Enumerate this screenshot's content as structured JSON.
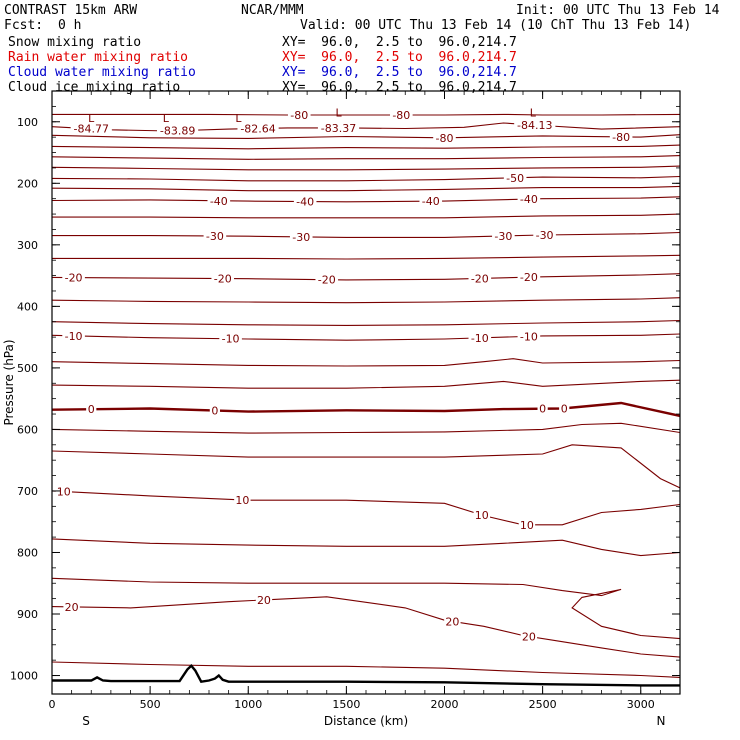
{
  "header": {
    "title": "CONTRAST 15km ARW",
    "center": "NCAR/MMM",
    "init": "Init: 00 UTC Thu 13 Feb 14",
    "fcst_label": "Fcst:",
    "fcst_value": "0 h",
    "valid": "Valid: 00 UTC Thu 13 Feb 14 (10 ChT Thu 13 Feb 14)"
  },
  "fields": [
    {
      "name": "Snow mixing ratio",
      "xy": "XY=  96.0,  2.5 to  96.0,214.7",
      "color": "#000000"
    },
    {
      "name": "Rain water mixing ratio",
      "xy": "XY=  96.0,  2.5 to  96.0,214.7",
      "color": "#e00000"
    },
    {
      "name": "Cloud water mixing ratio",
      "xy": "XY=  96.0,  2.5 to  96.0,214.7",
      "color": "#0000cc"
    },
    {
      "name": "Cloud ice mixing ratio",
      "xy": "XY=  96.0,  2.5 to  96.0,214.7",
      "color": "#000000"
    }
  ],
  "chart_data": {
    "type": "line",
    "xlabel": "Distance (km)",
    "ylabel": "Pressure (hPa)",
    "xlim": [
      0,
      3200
    ],
    "ylim": [
      1030,
      50
    ],
    "x_ticks": [
      0,
      500,
      1000,
      1500,
      2000,
      2500,
      3000
    ],
    "y_ticks": [
      100,
      200,
      300,
      400,
      500,
      600,
      700,
      800,
      900,
      1000
    ],
    "x_end_labels": {
      "left": "S",
      "right": "N"
    },
    "contour_color": "#7a0000",
    "terrain_color": "#000000",
    "contours": [
      {
        "level": "-80",
        "x": [
          0,
          400,
          800,
          1200,
          1600,
          2000,
          2300,
          2500,
          2800,
          3200
        ],
        "p": [
          88,
          88,
          88,
          89,
          89,
          89,
          88,
          89,
          89,
          88
        ],
        "labels": [
          {
            "x": 1260,
            "text": "-80"
          },
          {
            "x": 1780,
            "text": "-80"
          }
        ]
      },
      {
        "level": "",
        "x": [
          0,
          300,
          600,
          900,
          1200,
          1500,
          1800,
          2100,
          2300,
          2500,
          2800,
          3200
        ],
        "p": [
          108,
          113,
          115,
          112,
          110,
          110,
          111,
          109,
          102,
          106,
          112,
          108
        ],
        "labels": [
          {
            "x": 200,
            "text": "-84.77"
          },
          {
            "x": 640,
            "text": "-83.89"
          },
          {
            "x": 1050,
            "text": "-82.64"
          },
          {
            "x": 1460,
            "text": "-83.37"
          },
          {
            "x": 2460,
            "text": "-84.13"
          }
        ]
      },
      {
        "level": "-80",
        "x": [
          0,
          500,
          1000,
          1500,
          2000,
          2500,
          3000,
          3200
        ],
        "p": [
          122,
          126,
          127,
          124,
          126,
          123,
          125,
          121
        ],
        "labels": [
          {
            "x": 2000,
            "text": "-80"
          },
          {
            "x": 2900,
            "text": "-80"
          }
        ]
      },
      {
        "level": "",
        "x": [
          0,
          500,
          1000,
          1500,
          2000,
          2500,
          3000,
          3200
        ],
        "p": [
          140,
          142,
          144,
          142,
          143,
          141,
          140,
          138
        ],
        "labels": []
      },
      {
        "level": "",
        "x": [
          0,
          500,
          1000,
          1500,
          2000,
          2500,
          3000,
          3200
        ],
        "p": [
          157,
          159,
          161,
          160,
          160,
          158,
          157,
          155
        ],
        "labels": []
      },
      {
        "level": "",
        "x": [
          0,
          500,
          1000,
          1500,
          2000,
          2500,
          3000,
          3200
        ],
        "p": [
          174,
          176,
          178,
          178,
          177,
          175,
          174,
          172
        ],
        "labels": []
      },
      {
        "level": "-50",
        "x": [
          0,
          500,
          1000,
          1500,
          2000,
          2500,
          3000,
          3200
        ],
        "p": [
          192,
          193,
          196,
          196,
          194,
          190,
          191,
          189
        ],
        "labels": [
          {
            "x": 2360,
            "text": "-50"
          }
        ]
      },
      {
        "level": "",
        "x": [
          0,
          500,
          1000,
          1500,
          2000,
          2500,
          3000,
          3200
        ],
        "p": [
          208,
          209,
          212,
          212,
          210,
          207,
          207,
          205
        ],
        "labels": []
      },
      {
        "level": "-40",
        "x": [
          0,
          500,
          1000,
          1500,
          2000,
          2500,
          3000,
          3200
        ],
        "p": [
          228,
          227,
          229,
          230,
          229,
          225,
          224,
          222
        ],
        "labels": [
          {
            "x": 850,
            "text": "-40"
          },
          {
            "x": 1290,
            "text": "-40"
          },
          {
            "x": 1930,
            "text": "-40"
          },
          {
            "x": 2430,
            "text": "-40"
          }
        ]
      },
      {
        "level": "",
        "x": [
          0,
          500,
          1000,
          1500,
          2000,
          2500,
          3000,
          3200
        ],
        "p": [
          255,
          255,
          256,
          256,
          256,
          253,
          252,
          250
        ],
        "labels": []
      },
      {
        "level": "-30",
        "x": [
          0,
          500,
          1000,
          1500,
          2000,
          2500,
          3000,
          3200
        ],
        "p": [
          285,
          285,
          286,
          288,
          288,
          284,
          282,
          280
        ],
        "labels": [
          {
            "x": 830,
            "text": "-30"
          },
          {
            "x": 1270,
            "text": "-30"
          },
          {
            "x": 2300,
            "text": "-30"
          },
          {
            "x": 2510,
            "text": "-30"
          }
        ]
      },
      {
        "level": "",
        "x": [
          0,
          500,
          1000,
          1500,
          2000,
          2500,
          3000,
          3200
        ],
        "p": [
          322,
          322,
          322,
          323,
          322,
          320,
          318,
          317
        ],
        "labels": []
      },
      {
        "level": "-20",
        "x": [
          0,
          500,
          1000,
          1500,
          2000,
          2500,
          3000,
          3200
        ],
        "p": [
          353,
          354,
          355,
          357,
          356,
          352,
          349,
          347
        ],
        "labels": [
          {
            "x": 110,
            "text": "-20"
          },
          {
            "x": 870,
            "text": "-20"
          },
          {
            "x": 1400,
            "text": "-20"
          },
          {
            "x": 2180,
            "text": "-20"
          },
          {
            "x": 2430,
            "text": "-20"
          }
        ]
      },
      {
        "level": "",
        "x": [
          0,
          500,
          1000,
          1500,
          2000,
          2500,
          3000,
          3200
        ],
        "p": [
          390,
          392,
          393,
          394,
          393,
          390,
          388,
          386
        ],
        "labels": []
      },
      {
        "level": "",
        "x": [
          0,
          500,
          1000,
          1500,
          2000,
          2500,
          3000,
          3200
        ],
        "p": [
          425,
          428,
          430,
          431,
          430,
          427,
          425,
          423
        ],
        "labels": []
      },
      {
        "level": "-10",
        "x": [
          0,
          500,
          1000,
          1500,
          2000,
          2500,
          3000,
          3200
        ],
        "p": [
          447,
          451,
          453,
          455,
          453,
          448,
          447,
          445
        ],
        "labels": [
          {
            "x": 110,
            "text": "-10"
          },
          {
            "x": 910,
            "text": "-10"
          },
          {
            "x": 2180,
            "text": "-10"
          },
          {
            "x": 2430,
            "text": "-10"
          }
        ]
      },
      {
        "level": "",
        "x": [
          0,
          500,
          1000,
          1500,
          2000,
          2200,
          2350,
          2500,
          3000,
          3200
        ],
        "p": [
          490,
          493,
          496,
          497,
          496,
          490,
          485,
          492,
          490,
          488
        ],
        "labels": []
      },
      {
        "level": "",
        "x": [
          0,
          500,
          1000,
          1500,
          2000,
          2300,
          2500,
          3000,
          3200
        ],
        "p": [
          528,
          530,
          533,
          533,
          530,
          522,
          530,
          522,
          520
        ],
        "labels": []
      },
      {
        "level": "0",
        "bold": true,
        "x": [
          0,
          500,
          1000,
          1500,
          2000,
          2300,
          2600,
          2900,
          3200
        ],
        "p": [
          568,
          566,
          571,
          569,
          570,
          567,
          566,
          557,
          578
        ],
        "labels": [
          {
            "x": 200,
            "text": "0"
          },
          {
            "x": 830,
            "text": "0"
          },
          {
            "x": 2500,
            "text": "0"
          },
          {
            "x": 2610,
            "text": "0"
          }
        ]
      },
      {
        "level": "",
        "x": [
          0,
          500,
          1000,
          1500,
          2000,
          2500,
          2700,
          2900,
          3200
        ],
        "p": [
          600,
          603,
          606,
          605,
          604,
          600,
          592,
          590,
          605
        ],
        "labels": []
      },
      {
        "level": "",
        "x": [
          0,
          500,
          1000,
          1500,
          2000,
          2500,
          2650,
          2900,
          3100,
          3200
        ],
        "p": [
          635,
          640,
          645,
          645,
          645,
          640,
          625,
          630,
          680,
          695
        ],
        "labels": []
      },
      {
        "level": "10",
        "x": [
          0,
          500,
          1000,
          1500,
          2000,
          2200,
          2400,
          2600,
          2800,
          3000,
          3200
        ],
        "p": [
          700,
          708,
          715,
          715,
          720,
          740,
          755,
          755,
          735,
          730,
          722
        ],
        "labels": [
          {
            "x": 60,
            "text": "10"
          },
          {
            "x": 970,
            "text": "10"
          },
          {
            "x": 2190,
            "text": "10"
          },
          {
            "x": 2420,
            "text": "10"
          }
        ]
      },
      {
        "level": "",
        "x": [
          0,
          500,
          1000,
          1500,
          2000,
          2300,
          2600,
          2800,
          3000,
          3200
        ],
        "p": [
          778,
          785,
          788,
          790,
          790,
          785,
          780,
          795,
          805,
          800
        ],
        "labels": []
      },
      {
        "level": "",
        "x": [
          0,
          500,
          1000,
          1500,
          2000,
          2400,
          2600,
          2800,
          2900,
          2700,
          2650,
          2800,
          3000,
          3200
        ],
        "p": [
          842,
          848,
          850,
          850,
          850,
          852,
          862,
          870,
          860,
          873,
          890,
          920,
          935,
          940
        ],
        "labels": []
      },
      {
        "level": "20",
        "x": [
          0,
          400,
          900,
          1400,
          1800,
          2000,
          2200,
          2400,
          2600,
          2800,
          3000,
          3200
        ],
        "p": [
          888,
          890,
          880,
          872,
          890,
          910,
          920,
          935,
          945,
          955,
          965,
          970
        ],
        "labels": [
          {
            "x": 100,
            "text": "20"
          },
          {
            "x": 1080,
            "text": "20"
          },
          {
            "x": 2040,
            "text": "20"
          },
          {
            "x": 2430,
            "text": "20"
          }
        ]
      },
      {
        "level": "",
        "x": [
          0,
          500,
          1000,
          1500,
          2000,
          2500,
          3000,
          3200
        ],
        "p": [
          978,
          982,
          985,
          985,
          988,
          995,
          1000,
          1003
        ],
        "labels": []
      }
    ],
    "terrain": {
      "x": [
        0,
        200,
        230,
        260,
        300,
        650,
        690,
        710,
        730,
        760,
        800,
        830,
        850,
        870,
        900,
        1500,
        2000,
        2500,
        3000,
        3200
      ],
      "p": [
        1008,
        1008,
        1003,
        1008,
        1009,
        1009,
        990,
        984,
        992,
        1010,
        1008,
        1005,
        1000,
        1007,
        1010,
        1010,
        1011,
        1014,
        1016,
        1016
      ]
    },
    "low_markers": [
      {
        "x": 200,
        "p": 94
      },
      {
        "x": 580,
        "p": 94
      },
      {
        "x": 950,
        "p": 94
      },
      {
        "x": 1460,
        "p": 85
      },
      {
        "x": 2450,
        "p": 85
      }
    ]
  }
}
